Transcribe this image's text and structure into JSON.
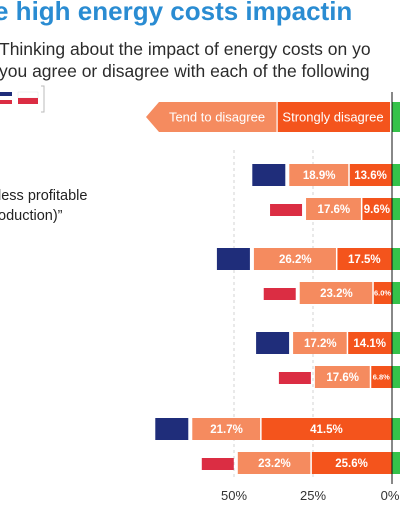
{
  "title": "e high energy costs impactin",
  "subtitle": "Thinking about the impact of energy costs on yo\nyou agree or disagree with each of the following",
  "quote_text": "less profitable\noduction)”",
  "legend_labels": [
    "Tend to disagree",
    "Strongly disagree"
  ],
  "colors": {
    "title": "#2a8cd2",
    "tend_to_disagree": "#f58b5f",
    "strongly_disagree": "#f4541c",
    "agree_side": "#35c24a",
    "series_a": "#1f2d7a",
    "series_b": "#db2d43",
    "gridline": "#d3d3d3",
    "zero_line": "#111111"
  },
  "chart_data": {
    "type": "bar",
    "orientation": "horizontal",
    "stacked": true,
    "layout": "diverging",
    "x_ticks": [
      "50%",
      "25%",
      "0%"
    ],
    "x_range_visible": [
      65,
      0
    ],
    "legend_placement": "top",
    "legend": [
      "Tend to disagree",
      "Strongly disagree"
    ],
    "groups": [
      {
        "rows": [
          {
            "flag": "series_a",
            "tend_to_disagree": 18.9,
            "strongly_disagree": 13.6,
            "tend_label": "18.9%",
            "strong_label": "13.6%"
          },
          {
            "flag": "series_b",
            "tend_to_disagree": 17.6,
            "strongly_disagree": 9.6,
            "tend_label": "17.6%",
            "strong_label": "9.6%"
          }
        ]
      },
      {
        "rows": [
          {
            "flag": "series_a",
            "tend_to_disagree": 26.2,
            "strongly_disagree": 17.5,
            "tend_label": "26.2%",
            "strong_label": "17.5%"
          },
          {
            "flag": "series_b",
            "tend_to_disagree": 23.2,
            "strongly_disagree": 6.0,
            "tend_label": "23.2%",
            "strong_label": "6.0%"
          }
        ]
      },
      {
        "rows": [
          {
            "flag": "series_a",
            "tend_to_disagree": 17.2,
            "strongly_disagree": 14.1,
            "tend_label": "17.2%",
            "strong_label": "14.1%"
          },
          {
            "flag": "series_b",
            "tend_to_disagree": 17.6,
            "strongly_disagree": 6.8,
            "tend_label": "17.6%",
            "strong_label": "6.8%"
          }
        ]
      },
      {
        "rows": [
          {
            "flag": "series_a",
            "tend_to_disagree": 21.7,
            "strongly_disagree": 41.5,
            "tend_label": "21.7%",
            "strong_label": "41.5%"
          },
          {
            "flag": "series_b",
            "tend_to_disagree": 23.2,
            "strongly_disagree": 25.6,
            "tend_label": "23.2%",
            "strong_label": "25.6%"
          }
        ]
      }
    ]
  }
}
